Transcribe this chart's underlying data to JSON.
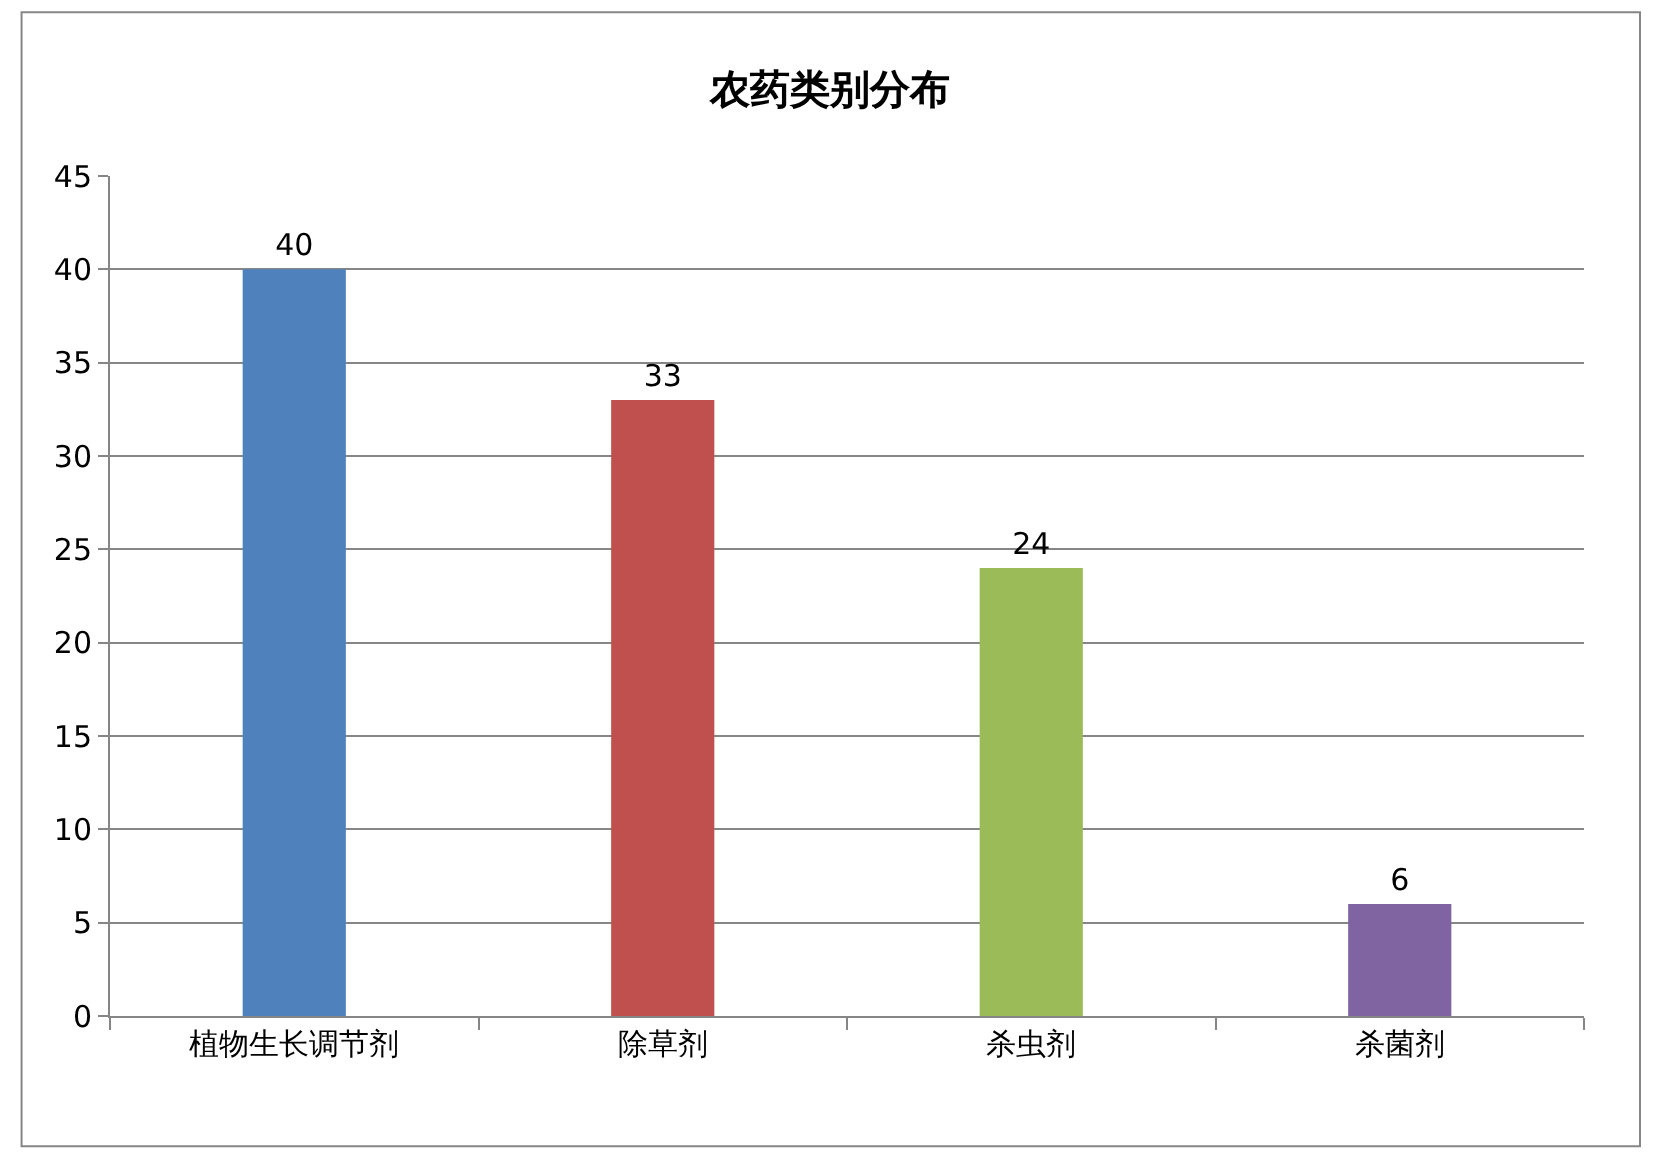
{
  "chart_data": {
    "type": "bar",
    "title": "农药类别分布",
    "categories": [
      "植物生长调节剂",
      "除草剂",
      "杀虫剂",
      "杀菌剂"
    ],
    "values": [
      40,
      33,
      24,
      6
    ],
    "colors": [
      "#4f81bd",
      "#c0504d",
      "#9bbb59",
      "#8064a2"
    ],
    "ylim": [
      0,
      45
    ],
    "yticks": [
      0,
      5,
      10,
      15,
      20,
      25,
      30,
      35,
      40,
      45
    ],
    "grid": "y",
    "data_labels": true
  }
}
